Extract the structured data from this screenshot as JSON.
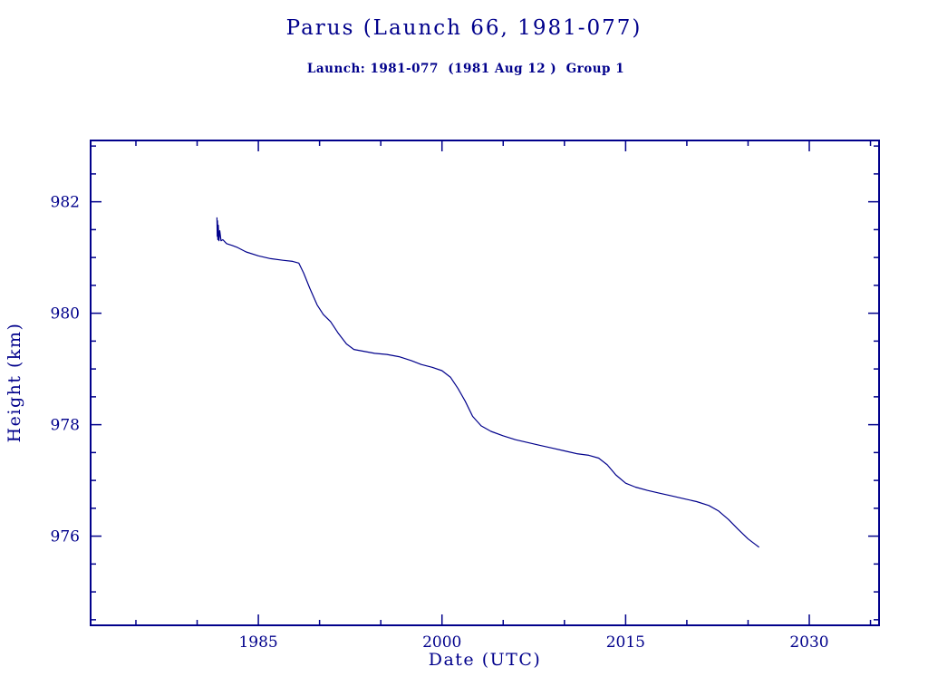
{
  "title": "Parus (Launch 66, 1981-077)",
  "subtitle": "Launch: 1981-077  (1981 Aug 12 )  Group 1",
  "accent_color": "#00008B",
  "chart_data": {
    "type": "line",
    "title": "Parus (Launch 66, 1981-077)",
    "subtitle": "Launch: 1981-077  (1981 Aug 12 )  Group 1",
    "xlabel": "Date (UTC)",
    "ylabel": "Height (km)",
    "xlim": [
      1971.3,
      2035.7
    ],
    "ylim": [
      974.4,
      983.1
    ],
    "xticks": [
      1985,
      2000,
      2015,
      2030
    ],
    "yticks": [
      976,
      978,
      980,
      982
    ],
    "x_minor_step": 5,
    "y_minor_step": 0.5,
    "grid": false,
    "legend": "none",
    "line_color": "#00008B",
    "series": [
      {
        "name": "orbit-height-km",
        "points": [
          [
            1981.62,
            981.72
          ],
          [
            1981.64,
            981.38
          ],
          [
            1981.66,
            981.66
          ],
          [
            1981.69,
            981.32
          ],
          [
            1981.73,
            981.58
          ],
          [
            1981.78,
            981.3
          ],
          [
            1981.85,
            981.48
          ],
          [
            1981.95,
            981.3
          ],
          [
            1982.1,
            981.32
          ],
          [
            1982.4,
            981.25
          ],
          [
            1982.8,
            981.22
          ],
          [
            1983.3,
            981.18
          ],
          [
            1984.0,
            981.1
          ],
          [
            1985.0,
            981.03
          ],
          [
            1986.0,
            980.98
          ],
          [
            1987.0,
            980.95
          ],
          [
            1987.8,
            980.93
          ],
          [
            1988.3,
            980.9
          ],
          [
            1988.7,
            980.72
          ],
          [
            1989.2,
            980.45
          ],
          [
            1989.8,
            980.15
          ],
          [
            1990.3,
            979.98
          ],
          [
            1990.9,
            979.85
          ],
          [
            1991.5,
            979.65
          ],
          [
            1992.2,
            979.45
          ],
          [
            1992.8,
            979.35
          ],
          [
            1993.5,
            979.32
          ],
          [
            1994.5,
            979.28
          ],
          [
            1995.5,
            979.26
          ],
          [
            1996.5,
            979.22
          ],
          [
            1997.5,
            979.15
          ],
          [
            1998.3,
            979.08
          ],
          [
            1999.2,
            979.03
          ],
          [
            2000.0,
            978.97
          ],
          [
            2000.7,
            978.85
          ],
          [
            2001.3,
            978.65
          ],
          [
            2001.9,
            978.42
          ],
          [
            2002.5,
            978.15
          ],
          [
            2003.2,
            977.98
          ],
          [
            2004.0,
            977.88
          ],
          [
            2005.0,
            977.8
          ],
          [
            2006.0,
            977.73
          ],
          [
            2007.0,
            977.68
          ],
          [
            2008.0,
            977.63
          ],
          [
            2009.0,
            977.58
          ],
          [
            2010.0,
            977.53
          ],
          [
            2011.0,
            977.48
          ],
          [
            2012.0,
            977.45
          ],
          [
            2012.8,
            977.4
          ],
          [
            2013.5,
            977.28
          ],
          [
            2014.2,
            977.1
          ],
          [
            2015.0,
            976.95
          ],
          [
            2015.8,
            976.88
          ],
          [
            2016.8,
            976.82
          ],
          [
            2017.8,
            976.77
          ],
          [
            2018.8,
            976.72
          ],
          [
            2019.8,
            976.67
          ],
          [
            2020.8,
            976.62
          ],
          [
            2021.8,
            976.55
          ],
          [
            2022.6,
            976.45
          ],
          [
            2023.4,
            976.3
          ],
          [
            2024.2,
            976.12
          ],
          [
            2025.0,
            975.95
          ],
          [
            2025.6,
            975.85
          ],
          [
            2025.9,
            975.8
          ]
        ]
      }
    ]
  }
}
